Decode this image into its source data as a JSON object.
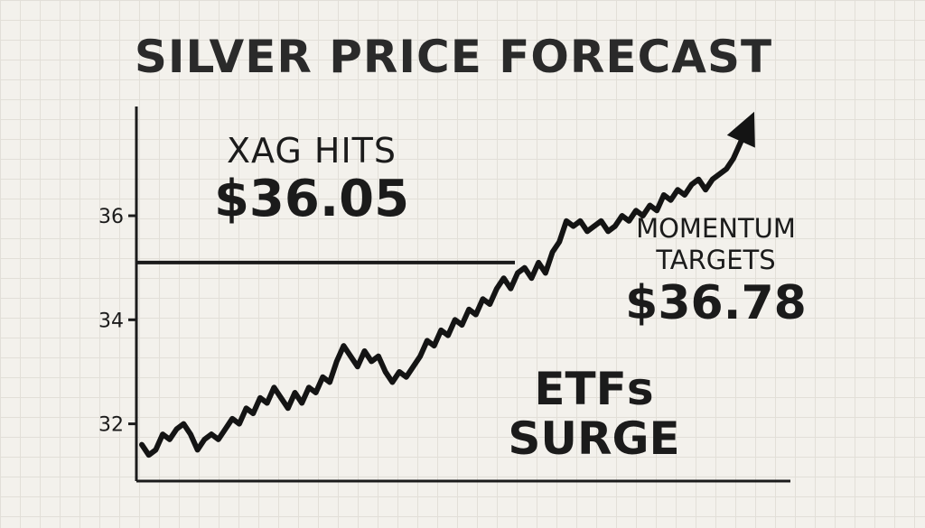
{
  "chart_data": {
    "type": "line",
    "title": "SILVER PRICE FORECAST",
    "xlabel": "",
    "ylabel": "",
    "ylim": [
      30.9,
      38.1
    ],
    "yticks": [
      32,
      34,
      36
    ],
    "grid": true,
    "reference_line": {
      "y": 35.1
    },
    "series": [
      {
        "values": [
          31.6,
          31.4,
          31.5,
          31.8,
          31.7,
          31.9,
          32.0,
          31.8,
          31.5,
          31.7,
          31.8,
          31.7,
          31.9,
          32.1,
          32.0,
          32.3,
          32.2,
          32.5,
          32.4,
          32.7,
          32.5,
          32.3,
          32.6,
          32.4,
          32.7,
          32.6,
          32.9,
          32.8,
          33.2,
          33.5,
          33.3,
          33.1,
          33.4,
          33.2,
          33.3,
          33.0,
          32.8,
          33.0,
          32.9,
          33.1,
          33.3,
          33.6,
          33.5,
          33.8,
          33.7,
          34.0,
          33.9,
          34.2,
          34.1,
          34.4,
          34.3,
          34.6,
          34.8,
          34.6,
          34.9,
          35.0,
          34.8,
          35.1,
          34.9,
          35.3,
          35.5,
          35.9,
          35.8,
          35.9,
          35.7,
          35.8,
          35.9,
          35.7,
          35.8,
          36.0,
          35.9,
          36.1,
          36.0,
          36.2,
          36.1,
          36.4,
          36.3,
          36.5,
          36.4,
          36.6,
          36.7,
          36.5,
          36.7,
          36.8,
          36.9,
          37.1,
          37.4,
          37.7,
          38.0
        ]
      }
    ],
    "annotations": [
      {
        "line1": "XAG HITS",
        "line2": "$36.05"
      },
      {
        "line1": "MOMENTUM",
        "line2": "TARGETS",
        "line3": "$36.78"
      },
      {
        "line1": "ETFs",
        "line2": "SURGE"
      }
    ]
  }
}
